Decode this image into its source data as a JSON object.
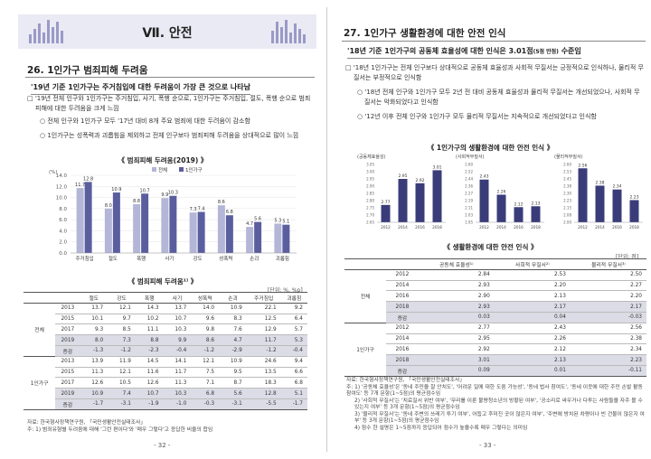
{
  "left": {
    "chapter": "Ⅶ. 안전",
    "section": "26. 1인가구 범죄피해 두려움",
    "summary": "'19년 기준 1인가구는 주거침입에 대한 두려움이 가장 큰 것으로 나타남",
    "bullet1": "'19년 전체 인구와 1인가구는 주거침입, 사기, 폭행 순으로, 1인가구는 주거침입, 절도, 폭행 순으로 범죄피해에 대한 두려움을 크게 느낌",
    "sub1": "전체 인구와 1인가구 모두 '17년 대비 8개 주요 범죄에 대한 두려움이 감소함",
    "sub2": "1인가구는 성폭력과 괴롭힘을 제외하고 전체 인구보다 범죄피해 두려움을 상대적으로 많이 느낌",
    "chart_title": "범죄피해 두려움(2019)",
    "table_title": "범죄피해 두려움",
    "unit": "[단위: %, %p]",
    "table_header": [
      "",
      "",
      "절도",
      "강도",
      "폭행",
      "사기",
      "성폭력",
      "손괴",
      "주거침입",
      "괴롭힘"
    ],
    "table_rows": [
      {
        "group": "전체",
        "year": "2013",
        "v": [
          "13.7",
          "12.1",
          "14.3",
          "13.7",
          "14.0",
          "10.9",
          "22.1",
          "9.2"
        ]
      },
      {
        "group": "",
        "year": "2015",
        "v": [
          "10.1",
          "9.7",
          "10.2",
          "10.7",
          "9.6",
          "8.3",
          "12.5",
          "6.4"
        ]
      },
      {
        "group": "",
        "year": "2017",
        "v": [
          "9.3",
          "8.5",
          "11.1",
          "10.3",
          "9.8",
          "7.6",
          "12.9",
          "5.7"
        ]
      },
      {
        "group": "",
        "year": "2019",
        "v": [
          "8.0",
          "7.3",
          "8.8",
          "9.9",
          "8.6",
          "4.7",
          "11.7",
          "5.3"
        ]
      },
      {
        "group": "",
        "year": "증감",
        "v": [
          "-1.3",
          "-1.2",
          "-2.3",
          "-0.4",
          "-1.2",
          "-2.9",
          "-1.2",
          "-0.4"
        ]
      },
      {
        "group": "1인가구",
        "year": "2013",
        "v": [
          "13.9",
          "11.9",
          "14.5",
          "14.1",
          "12.1",
          "10.9",
          "24.6",
          "9.4"
        ]
      },
      {
        "group": "",
        "year": "2015",
        "v": [
          "11.3",
          "12.1",
          "11.6",
          "11.7",
          "7.5",
          "9.5",
          "13.5",
          "6.6"
        ]
      },
      {
        "group": "",
        "year": "2017",
        "v": [
          "12.6",
          "10.5",
          "12.6",
          "11.3",
          "7.1",
          "8.7",
          "18.3",
          "6.8"
        ]
      },
      {
        "group": "",
        "year": "2019",
        "v": [
          "10.9",
          "7.4",
          "10.7",
          "10.3",
          "6.8",
          "5.6",
          "12.8",
          "5.1"
        ]
      },
      {
        "group": "",
        "year": "증감",
        "v": [
          "-1.7",
          "-3.1",
          "-1.9",
          "-1.0",
          "-0.3",
          "-3.1",
          "-5.5",
          "-1.7"
        ]
      }
    ],
    "note1": "자료: 한국형사정책연구원, 「국민생활안전실태조사」",
    "note2": "주: 1) 범죄유형별 두려움에 대해 '그런 편이다'와 '매우 그렇다'고 응답한 비율의 합임",
    "page": "- 32 -"
  },
  "right": {
    "section": "27. 1인가구 생활환경에 대한 안전 인식",
    "summary": "'18년 기준 1인가구의 공동체 효율성에 대한 인식은 3.01점",
    "summary_small": "(5점 만점)",
    "summary_tail": " 수준임",
    "bullet1": "'18년 1인가구는 전체 인구보다 상대적으로 공동체 효율성과 사회적 무질서는 긍정적으로 인식하나, 물리적 무질서는 부정적으로 인식함",
    "sub1": "'18년 전체 인구와 1인가구 모두 2년 전 대비 공동체 효율성과 물리적 무질서는 개선되었으나, 사회적 무질서는 악화되었다고 인식함",
    "sub2": "'12년 이후 전체 인구와 1인가구 모두 물리적 무질서는 지속적으로 개선되었다고 인식함",
    "chart_title": "1인가구의 생활환경에 대한 안전 인식",
    "table_title": "생활환경에 대한 안전 인식",
    "unit": "[단위: 점]",
    "table_header": [
      "",
      "",
      "공동체 효율성¹⁾",
      "사회적 무질서²⁾",
      "물리적 무질서³⁾"
    ],
    "table_rows": [
      {
        "group": "전체",
        "year": "2012",
        "v": [
          "2.84",
          "2.53",
          "2.50"
        ]
      },
      {
        "group": "",
        "year": "2014",
        "v": [
          "2.93",
          "2.20",
          "2.27"
        ]
      },
      {
        "group": "",
        "year": "2016",
        "v": [
          "2.90",
          "2.13",
          "2.20"
        ]
      },
      {
        "group": "",
        "year": "2018",
        "v": [
          "2.93",
          "2.17",
          "2.17"
        ]
      },
      {
        "group": "",
        "year": "증감",
        "v": [
          "0.03",
          "0.04",
          "-0.03"
        ]
      },
      {
        "group": "1인가구",
        "year": "2012",
        "v": [
          "2.77",
          "2.43",
          "2.56"
        ]
      },
      {
        "group": "",
        "year": "2014",
        "v": [
          "2.95",
          "2.26",
          "2.38"
        ]
      },
      {
        "group": "",
        "year": "2016",
        "v": [
          "2.92",
          "2.12",
          "2.34"
        ]
      },
      {
        "group": "",
        "year": "2018",
        "v": [
          "3.01",
          "2.13",
          "2.23"
        ]
      },
      {
        "group": "",
        "year": "증감",
        "v": [
          "0.09",
          "0.01",
          "-0.11"
        ]
      }
    ],
    "notes": [
      "자료: 한국형사정책연구원, 「국민생활안전실태조사」",
      "주: 1) '공동체 효율성'은 '동네 주민을 잘 안치도', '어려운 일에 대한 도움 가능성', '동네 법사 참여도', '동네 이웃에 대한 주민 손발 활동 참여도' 등 7개 문항(1~5점)의 평균점수임",
      "2) '사회적 무질서'는 '치료질서 위반 여부', '무리를 이룬 불량청소년의 방황된 여부', '공소리로 싸우거나 다투는 사람들을 자주 볼 수 있는지 여부' 등 3개 문항(1~5점)의 평균점수임",
      "3) '물리적 무질서'는 '동네 주변의 쓰레기 투기 여부', 어둡고 후미진 곳이 많은지 여부', '주변에 방치된 차량이나 빈 건물이 많은지 여부' 등 3개 문항(1~5점)의 평균점수임",
      "4) 점수 한 설명은 1~5점까지 응답되어 점수가 높을수록 매우 그렇다는 의미임"
    ],
    "page": "- 33 -"
  },
  "chart_data": [
    {
      "type": "bar",
      "title": "범죄피해 두려움(2019)",
      "ylabel": "(%)",
      "ylim": [
        0,
        14
      ],
      "categories": [
        "주거침입",
        "절도",
        "폭행",
        "사기",
        "강도",
        "성폭력",
        "손괴",
        "괴롭힘"
      ],
      "series": [
        {
          "name": "전체",
          "color": "#b4b6d8",
          "values": [
            11.7,
            8.0,
            8.8,
            9.9,
            7.3,
            8.6,
            4.7,
            5.3
          ]
        },
        {
          "name": "1인가구",
          "color": "#5b5e9e",
          "values": [
            12.8,
            10.9,
            10.7,
            10.3,
            7.4,
            6.8,
            5.6,
            5.1
          ]
        }
      ]
    },
    {
      "type": "bar",
      "title": "(공동체효율성)",
      "categories": [
        "2012",
        "2014",
        "2016",
        "2018"
      ],
      "ylim": [
        2.65,
        3.05
      ],
      "series": [
        {
          "name": "1인가구",
          "color": "#3a3c7a",
          "values": [
            2.77,
            2.95,
            2.92,
            3.01
          ]
        }
      ]
    },
    {
      "type": "bar",
      "title": "(사회적무질서)",
      "categories": [
        "2012",
        "2014",
        "2016",
        "2018"
      ],
      "ylim": [
        1.95,
        2.6
      ],
      "series": [
        {
          "name": "1인가구",
          "color": "#3a3c7a",
          "values": [
            2.43,
            2.26,
            2.12,
            2.13
          ]
        }
      ]
    },
    {
      "type": "bar",
      "title": "(물리적무질서)",
      "categories": [
        "2012",
        "2014",
        "2016",
        "2018"
      ],
      "ylim": [
        2.0,
        2.6
      ],
      "series": [
        {
          "name": "1인가구",
          "color": "#3a3c7a",
          "values": [
            2.56,
            2.38,
            2.34,
            2.23
          ]
        }
      ]
    }
  ]
}
